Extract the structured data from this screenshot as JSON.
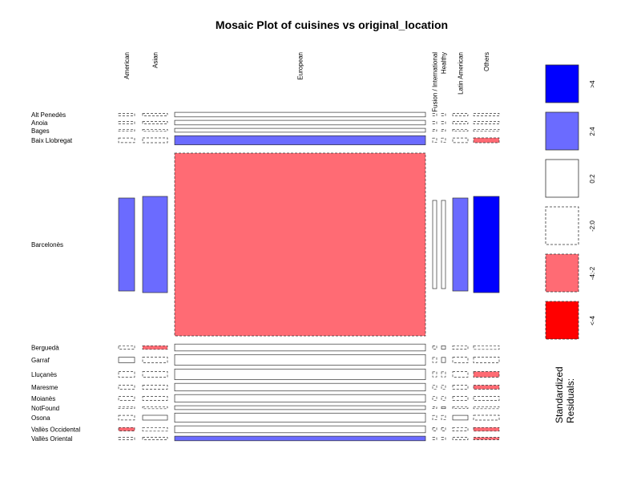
{
  "chart_data": {
    "type": "mosaic",
    "title": "Mosaic Plot of cuisines vs original_location",
    "columns": [
      "American",
      "Asian",
      "European",
      "Fusion / International",
      "Healthy",
      "Latin American",
      "Others"
    ],
    "rows": [
      "Alt Penedès",
      "Anoia",
      "Bages",
      "Baix Llobregat",
      "Barcelonès",
      "Berguedà",
      "Garraf",
      "Lluçanès",
      "Maresme",
      "Moianès",
      "NotFound",
      "Osona",
      "Vallès Occidental",
      "Vallès Oriental"
    ],
    "residual_classes": [
      "<-4",
      "-4:-2",
      "-2:0",
      "0:2",
      "2:4",
      ">4"
    ],
    "legend": {
      "title_line1": "Standardized",
      "title_line2": "Residuals:",
      "labels": [
        ">4",
        "2:4",
        "0:2",
        "-2:0",
        "-4:-2",
        "<-4"
      ],
      "colors": [
        "#0000ff",
        "#6b6bff",
        "#ffffff",
        "#ffffff",
        "#ff6b74",
        "#ff0000"
      ],
      "dashed": [
        false,
        false,
        false,
        true,
        true,
        true
      ]
    },
    "cells": [
      [
        2,
        2,
        3,
        2,
        2,
        2,
        2
      ],
      [
        2,
        2,
        3,
        2,
        2,
        2,
        2
      ],
      [
        2,
        2,
        3,
        2,
        2,
        2,
        2
      ],
      [
        2,
        2,
        4,
        2,
        2,
        2,
        1
      ],
      [
        4,
        4,
        1,
        3,
        3,
        4,
        5
      ],
      [
        2,
        1,
        3,
        2,
        3,
        2,
        2
      ],
      [
        3,
        2,
        3,
        2,
        3,
        2,
        2
      ],
      [
        2,
        2,
        3,
        2,
        2,
        2,
        1
      ],
      [
        2,
        2,
        3,
        2,
        2,
        2,
        1
      ],
      [
        2,
        2,
        3,
        2,
        2,
        2,
        2
      ],
      [
        2,
        2,
        3,
        2,
        3,
        2,
        2
      ],
      [
        2,
        3,
        3,
        2,
        2,
        3,
        2
      ],
      [
        1,
        2,
        3,
        2,
        2,
        2,
        1
      ],
      [
        2,
        2,
        4,
        2,
        2,
        2,
        1
      ]
    ],
    "column_fractions": [
      0.0606,
      0.0909,
      0.9091,
      0.0152,
      0.0152,
      0.0606,
      0.0909
    ],
    "row_heights": [
      6,
      6,
      5,
      12,
      240,
      9,
      14,
      14,
      10,
      10,
      5,
      12,
      9,
      6
    ]
  }
}
